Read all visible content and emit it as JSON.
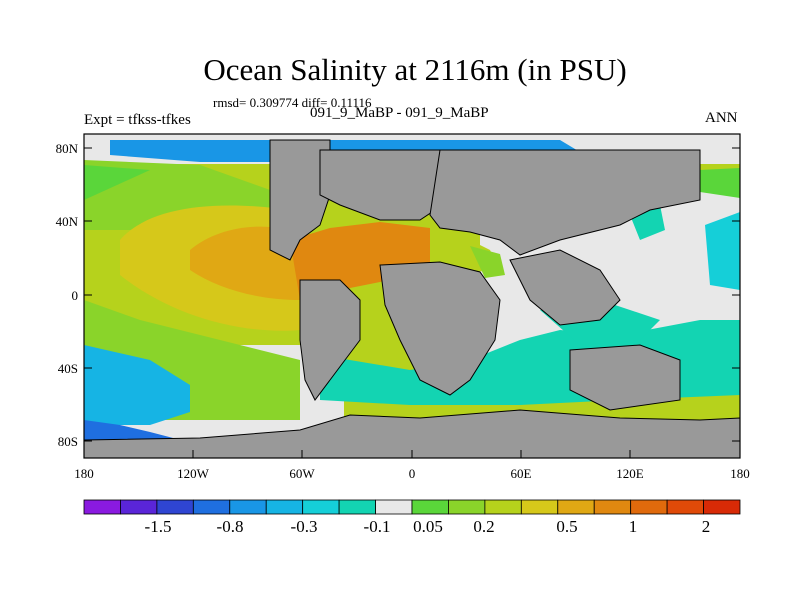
{
  "title": "Ocean Salinity at 2116m (in PSU)",
  "stats_line": "rmsd= 0.309774 diff= 0.11116",
  "subtitle": "091_9_MaBP - 091_9_MaBP",
  "left_label": "Expt = tfkss-tfkes",
  "right_label": "ANN",
  "lat_labels": [
    "80N",
    "40N",
    "0",
    "40S",
    "80S"
  ],
  "lon_labels": [
    "180",
    "120W",
    "60W",
    "0",
    "60E",
    "120E",
    "180"
  ],
  "colorbar": {
    "colors": [
      "#8a1ae0",
      "#5a25d8",
      "#2f45d2",
      "#1f6fe0",
      "#1996e6",
      "#16b4e4",
      "#15cfd8",
      "#13d4b2",
      "#e8e8e8",
      "#5ad63a",
      "#8ad42a",
      "#b6d21c",
      "#d6c81a",
      "#e0a814",
      "#e08810",
      "#e06a0c",
      "#e04a08",
      "#d82a06"
    ],
    "labels": [
      "-1.5",
      "-0.8",
      "-0.3",
      "-0.1",
      "0.05",
      "0.2",
      "0.5",
      "1",
      "2"
    ]
  },
  "colors": {
    "land": "#999999",
    "neutral": "#e8e8e8"
  }
}
